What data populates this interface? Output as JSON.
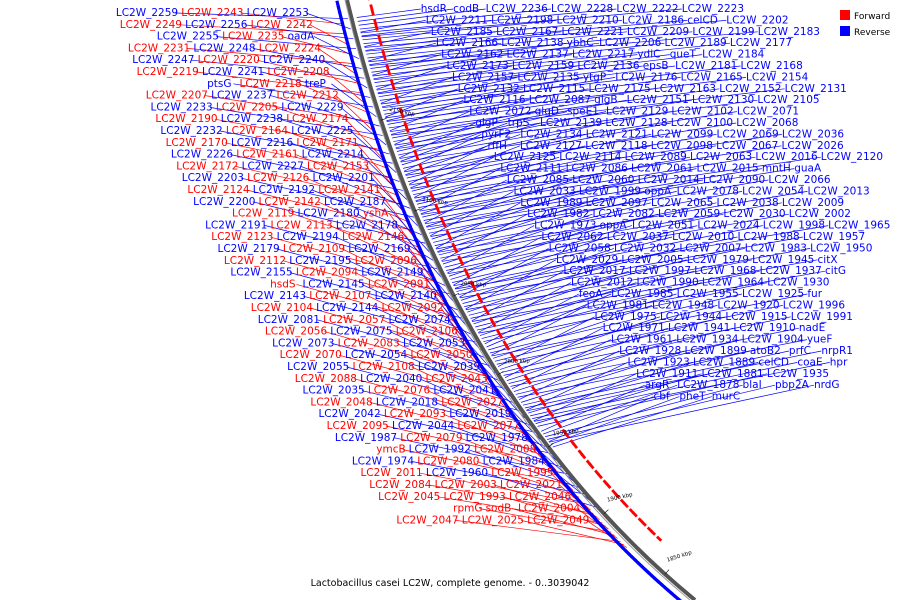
{
  "caption": "Lactobacillus casei LC2W, complete genome. - 0..3039042",
  "legend": [
    {
      "label": "Forward",
      "color": "#ff0000"
    },
    {
      "label": "Reverse",
      "color": "#0000ff"
    }
  ],
  "colors": {
    "forward": "#ff0000",
    "reverse": "#0000ff",
    "backbone": "#555555"
  },
  "ticks": [
    "2150 kbp",
    "2100 kbp",
    "2050 kbp",
    "2000 kbp",
    "1950 kbp",
    "1900 kbp",
    "1850 kbp"
  ],
  "reverse_labels": [
    "LC2W_2259",
    "LC2W_2253",
    "LC2W_2256",
    "LC2W_2255",
    "oadA",
    "LC2W_2248",
    "LC2W_2247",
    "LC2W_2240",
    "LC2W_2241",
    "ptsG",
    "treP",
    "LC2W_2237",
    "LC2W_2233",
    "LC2W_2229",
    "LC2W_2238",
    "LC2W_2232",
    "LC2W_2225",
    "LC2W_2216",
    "LC2W_2226",
    "LC2W_2214",
    "LC2W_2227",
    "LC2W_2203",
    "LC2W_2201",
    "LC2W_2192",
    "LC2W_2200",
    "LC2W_2187",
    "LC2W_2180",
    "LC2W_2191",
    "LC2W_2178",
    "LC2W_2194",
    "LC2W_2179",
    "LC2W_2169",
    "LC2W_2195",
    "LC2W_2155",
    "LC2W_2149",
    "LC2W_2145",
    "LC2W_2143",
    "LC2W_2140",
    "LC2W_2144",
    "LC2W_2081",
    "LC2W_2074",
    "LC2W_2075",
    "LC2W_2073",
    "LC2W_2053",
    "LC2W_2054",
    "LC2W_2055",
    "LC2W_2039",
    "LC2W_2040",
    "LC2W_2035",
    "LC2W_2041",
    "LC2W_2018",
    "LC2W_2042",
    "LC2W_2019",
    "LC2W_2044",
    "LC2W_1987",
    "LC2W_1978",
    "LC2W_1992",
    "LC2W_1974",
    "LC2W_1984",
    "LC2W_1960",
    "hsdR",
    "codB",
    "LC2W_2236",
    "LC2W_2228",
    "LC2W_2222",
    "LC2W_2223",
    "LC2W_2211",
    "LC2W_2198",
    "LC2W_2210",
    "LC2W_2186",
    "celCD",
    "LC2W_2202",
    "LC2W_2185",
    "LC2W_2167",
    "LC2W_2221",
    "LC2W_2209",
    "LC2W_2199",
    "LC2W_2183",
    "LC2W_2166",
    "LC2W_2138",
    "ybhC",
    "LC2W_2206",
    "LC2W_2189",
    "LC2W_2177",
    "LC2W_2162",
    "LC2W_2137",
    "LC2W_2217",
    "ydiC",
    "queT",
    "LC2W_2184",
    "LC2W_2173",
    "LC2W_2159",
    "LC2W_2136",
    "epsB",
    "LC2W_2181",
    "LC2W_2168",
    "LC2W_2157",
    "LC2W_2135",
    "ytgP",
    "LC2W_2176",
    "LC2W_2165",
    "LC2W_2154",
    "LC2W_2132",
    "LC2W_2115",
    "LC2W_2175",
    "LC2W_2163",
    "LC2W_2152",
    "LC2W_2131",
    "LC2W_2116",
    "LC2W_2087",
    "glgB",
    "LC2W_2151",
    "LC2W_2130",
    "LC2W_2105",
    "LC2W_2072",
    "glgD",
    "speE1",
    "LC2W_2129",
    "LC2W_2102",
    "LC2W_2071",
    "glgP",
    "trpS",
    "LC2W_2139",
    "LC2W_2128",
    "LC2W_2100",
    "LC2W_2068",
    "pyrF2",
    "LC2W_2134",
    "LC2W_2121",
    "LC2W_2099",
    "LC2W_2069",
    "LC2W_2036",
    "rffH",
    "LC2W_2127",
    "LC2W_2118",
    "LC2W_2098",
    "LC2W_2067",
    "LC2W_2026",
    "LC2W_2125",
    "LC2W_2114",
    "LC2W_2089",
    "LC2W_2063",
    "LC2W_2016",
    "LC2W_2120",
    "LC2W_2111",
    "LC2W_2086",
    "LC2W_2061",
    "LC2W_2015",
    "mntH",
    "guaA",
    "LC2W_2085",
    "LC2W_2060",
    "LC2W_2014",
    "LC2W_2090",
    "LC2W_2066",
    "LC2W_2033",
    "LC2W_1999",
    "oppA",
    "LC2W_2078",
    "LC2W_2054",
    "LC2W_2013",
    "LC2W_1989",
    "LC2W_2097",
    "LC2W_2065",
    "LC2W_2038",
    "LC2W_2009",
    "LC2W_1982",
    "LC2W_2082",
    "LC2W_2059",
    "LC2W_2030",
    "LC2W_2002",
    "LC2W_1973",
    "oppA",
    "LC2W_2051",
    "LC2W_2024",
    "LC2W_1998",
    "LC2W_1965",
    "LC2W_2062",
    "LC2W_2037",
    "LC2W_2010",
    "LC2W_1988",
    "LC2W_1957",
    "LC2W_2058",
    "LC2W_2032",
    "LC2W_2007",
    "LC2W_1983",
    "LC2W_1950",
    "LC2W_2029",
    "LC2W_2005",
    "LC2W_1979",
    "LC2W_1945",
    "citX",
    "LC2W_2017",
    "LC2W_1997",
    "LC2W_1968",
    "LC2W_1937",
    "citG",
    "LC2W_2012",
    "LC2W_1990",
    "LC2W_1964",
    "LC2W_1930",
    "feoA",
    "LC2W_1985",
    "LC2W_1955",
    "LC2W_1925",
    "fur",
    "LC2W_1981",
    "LC2W_1948",
    "LC2W_1920",
    "LC2W_1996",
    "LC2W_1975",
    "LC2W_1944",
    "LC2W_1915",
    "LC2W_1991",
    "LC2W_1971",
    "LC2W_1941",
    "LC2W_1910",
    "nadE",
    "LC2W_1961",
    "LC2W_1934",
    "LC2W_1904",
    "yueF",
    "LC2W_1928",
    "LC2W_1899",
    "atoB2",
    "prfC",
    "nrpR1",
    "LC2W_1923",
    "LC2W_1889",
    "celCD",
    "coaE",
    "hpr",
    "LC2W_1911",
    "LC2W_1881",
    "LC2W_1935",
    "argR",
    "LC2W_1878",
    "blaI",
    "pbp2A",
    "nrdG",
    "cbf",
    "pheT",
    "murC"
  ],
  "forward_labels": [
    "LC2W_2243",
    "LC2W_2249",
    "LC2W_2242",
    "LC2W_2235",
    "LC2W_2231",
    "LC2W_2224",
    "LC2W_2220",
    "LC2W_2219",
    "LC2W_2208",
    "LC2W_2218",
    "LC2W_2207",
    "LC2W_2212",
    "LC2W_2205",
    "LC2W_2190",
    "LC2W_2174",
    "LC2W_2164",
    "LC2W_2170",
    "LC2W_2171",
    "LC2W_2161",
    "LC2W_2172",
    "LC2W_2153",
    "LC2W_2126",
    "LC2W_2124",
    "LC2W_2141",
    "LC2W_2142",
    "LC2W_2119",
    "yshA",
    "LC2W_2113",
    "LC2W_2123",
    "LC2W_2146",
    "LC2W_2109",
    "LC2W_2112",
    "LC2W_2096",
    "LC2W_2094",
    "hsdS",
    "LC2W_2091",
    "LC2W_2107",
    "LC2W_2104",
    "LC2W_2092",
    "LC2W_2057",
    "LC2W_2056",
    "LC2W_2106",
    "LC2W_2083",
    "LC2W_2070",
    "LC2W_2050",
    "LC2W_2108",
    "LC2W_2088",
    "LC2W_2043",
    "LC2W_2076",
    "LC2W_2048",
    "LC2W_2027",
    "LC2W_2093",
    "LC2W_2095",
    "LC2W_2077",
    "LC2W_2079",
    "ymcB",
    "LC2W_2008",
    "LC2W_2080",
    "LC2W_2011",
    "LC2W_1995",
    "LC2W_2084",
    "LC2W_2003",
    "LC2W_2021",
    "LC2W_2045",
    "LC2W_1993",
    "LC2W_2046",
    "rpmG",
    "sodB",
    "LC2W_2004",
    "LC2W_2047",
    "LC2W_2025",
    "LC2W_2049"
  ]
}
